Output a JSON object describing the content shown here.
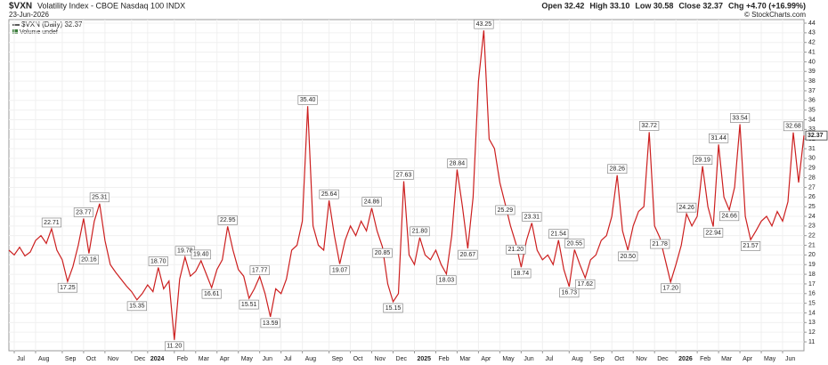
{
  "chart_data": {
    "type": "line",
    "symbol": "$VXN",
    "title": "Volatility Index - CBOE Nasdaq 100 INDX",
    "date": "23-Jun-2026",
    "quote": [
      "Open 32.42",
      "High 33.10",
      "Low 30.58",
      "Close 32.37",
      "Chg +4.70 (+16.99%)"
    ],
    "copyright": "© StockCharts.com",
    "legend": [
      "$VXN (Daily) 32.37",
      "Volume undef"
    ],
    "color": "#cc1f1f",
    "grid": true,
    "values": [
      20.5,
      20.0,
      20.8,
      19.9,
      20.3,
      21.5,
      22.0,
      21.2,
      22.71,
      20.5,
      19.5,
      17.25,
      18.8,
      21.0,
      23.77,
      20.16,
      23.5,
      25.31,
      21.5,
      19.0,
      18.2,
      17.5,
      16.8,
      16.2,
      15.35,
      16.0,
      16.9,
      16.2,
      18.7,
      16.5,
      17.3,
      11.2,
      17.5,
      19.78,
      17.8,
      18.3,
      19.4,
      18.0,
      16.61,
      18.5,
      19.5,
      22.95,
      20.5,
      18.5,
      17.8,
      15.51,
      16.5,
      17.77,
      16.0,
      13.59,
      16.5,
      16.0,
      17.5,
      20.5,
      21.0,
      23.5,
      35.4,
      23.0,
      21.0,
      20.5,
      25.64,
      22.0,
      19.07,
      21.5,
      23.0,
      22.0,
      23.5,
      22.5,
      24.86,
      22.5,
      20.85,
      17.0,
      15.15,
      16.0,
      27.63,
      20.0,
      19.0,
      21.8,
      20.0,
      19.5,
      20.5,
      19.0,
      18.03,
      22.0,
      28.84,
      25.0,
      20.67,
      26.0,
      38.0,
      43.25,
      32.0,
      31.0,
      27.5,
      25.29,
      23.0,
      21.2,
      18.74,
      21.5,
      23.31,
      20.5,
      19.5,
      20.0,
      19.0,
      21.54,
      18.5,
      16.73,
      20.55,
      19.0,
      17.62,
      19.5,
      20.0,
      21.5,
      22.0,
      24.0,
      28.26,
      22.5,
      20.5,
      23.0,
      24.5,
      25.0,
      32.72,
      23.0,
      21.78,
      19.5,
      17.2,
      19.0,
      21.0,
      24.26,
      23.0,
      24.0,
      29.19,
      25.0,
      22.94,
      31.44,
      26.0,
      24.66,
      27.0,
      33.54,
      24.0,
      21.57,
      22.5,
      23.5,
      24.0,
      23.0,
      24.5,
      23.5,
      25.5,
      32.68,
      27.5,
      32.37
    ],
    "value_labels": [
      null,
      null,
      null,
      null,
      null,
      null,
      null,
      null,
      "22.71",
      null,
      null,
      "17.25",
      null,
      null,
      "23.77",
      "20.16",
      null,
      "25.31",
      null,
      null,
      null,
      null,
      null,
      null,
      "15.35",
      null,
      null,
      null,
      "18.70",
      null,
      null,
      "11.20",
      null,
      "19.78",
      null,
      null,
      "19.40",
      null,
      "16.61",
      null,
      null,
      "22.95",
      null,
      null,
      null,
      "15.51",
      null,
      "17.77",
      null,
      "13.59",
      null,
      null,
      null,
      null,
      null,
      null,
      "35.40",
      null,
      null,
      null,
      "25.64",
      null,
      "19.07",
      null,
      null,
      null,
      null,
      null,
      "24.86",
      null,
      "20.85",
      null,
      "15.15",
      null,
      "27.63",
      null,
      null,
      "21.80",
      null,
      null,
      null,
      null,
      "18.03",
      null,
      "28.84",
      null,
      "20.67",
      null,
      null,
      "43.25",
      null,
      null,
      null,
      "25.29",
      null,
      "21.20",
      "18.74",
      null,
      "23.31",
      null,
      null,
      null,
      null,
      "21.54",
      null,
      "16.73",
      "20.55",
      null,
      "17.62",
      null,
      null,
      null,
      null,
      null,
      "28.26",
      null,
      "20.50",
      null,
      null,
      null,
      "32.72",
      null,
      "21.78",
      null,
      "17.20",
      null,
      null,
      "24.26",
      null,
      null,
      "29.19",
      null,
      "22.94",
      "31.44",
      null,
      "24.66",
      null,
      "33.54",
      null,
      "21.57",
      null,
      null,
      null,
      null,
      null,
      null,
      null,
      "32.68",
      null,
      null
    ],
    "xlim": [
      0,
      149
    ],
    "xticks": [
      {
        "value": 1,
        "label": "Jul"
      },
      {
        "value": 5,
        "label": "Aug"
      },
      {
        "value": 10,
        "label": "Sep"
      },
      {
        "value": 14,
        "label": "Oct"
      },
      {
        "value": 18,
        "label": "Nov"
      },
      {
        "value": 23,
        "label": "Dec"
      },
      {
        "value": 26,
        "label": "2024"
      },
      {
        "value": 31,
        "label": "Feb"
      },
      {
        "value": 35,
        "label": "Mar"
      },
      {
        "value": 39,
        "label": "Apr"
      },
      {
        "value": 43,
        "label": "May"
      },
      {
        "value": 47,
        "label": "Jun"
      },
      {
        "value": 51,
        "label": "Jul"
      },
      {
        "value": 55,
        "label": "Aug"
      },
      {
        "value": 60,
        "label": "Sep"
      },
      {
        "value": 64,
        "label": "Oct"
      },
      {
        "value": 68,
        "label": "Nov"
      },
      {
        "value": 72,
        "label": "Dec"
      },
      {
        "value": 76,
        "label": "2025"
      },
      {
        "value": 80,
        "label": "Feb"
      },
      {
        "value": 84,
        "label": "Mar"
      },
      {
        "value": 88,
        "label": "Apr"
      },
      {
        "value": 92,
        "label": "May"
      },
      {
        "value": 96,
        "label": "Jun"
      },
      {
        "value": 100,
        "label": "Jul"
      },
      {
        "value": 105,
        "label": "Aug"
      },
      {
        "value": 109,
        "label": "Sep"
      },
      {
        "value": 113,
        "label": "Oct"
      },
      {
        "value": 117,
        "label": "Nov"
      },
      {
        "value": 121,
        "label": "Dec"
      },
      {
        "value": 125,
        "label": "2026"
      },
      {
        "value": 129,
        "label": "Feb"
      },
      {
        "value": 133,
        "label": "Mar"
      },
      {
        "value": 137,
        "label": "Apr"
      },
      {
        "value": 141,
        "label": "May"
      },
      {
        "value": 145,
        "label": "Jun"
      }
    ],
    "ylim": [
      10.08,
      44.37
    ],
    "yticks": [
      11,
      12,
      13,
      14,
      15,
      16,
      17,
      18,
      19,
      20,
      21,
      22,
      23,
      24,
      25,
      26,
      27,
      28,
      29,
      30,
      31,
      32,
      33,
      34,
      35,
      36,
      37,
      38,
      39,
      40,
      41,
      42,
      43,
      44
    ]
  }
}
